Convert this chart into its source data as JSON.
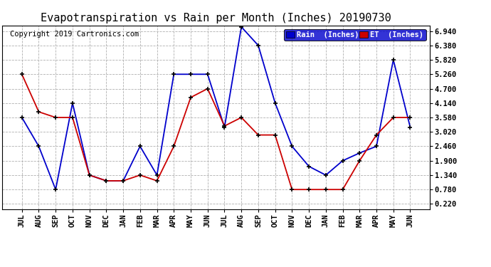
{
  "title": "Evapotranspiration vs Rain per Month (Inches) 20190730",
  "copyright": "Copyright 2019 Cartronics.com",
  "months": [
    "JUL",
    "AUG",
    "SEP",
    "OCT",
    "NOV",
    "DEC",
    "JAN",
    "FEB",
    "MAR",
    "APR",
    "MAY",
    "JUN",
    "JUL",
    "AUG",
    "SEP",
    "OCT",
    "NOV",
    "DEC",
    "JAN",
    "FEB",
    "MAR",
    "APR",
    "MAY",
    "JUN"
  ],
  "rain_values": [
    3.58,
    2.46,
    0.78,
    4.14,
    1.34,
    1.12,
    1.12,
    2.46,
    1.34,
    5.26,
    5.26,
    5.26,
    3.2,
    7.1,
    6.38,
    4.14,
    2.46,
    1.68,
    1.34,
    1.9,
    2.2,
    2.46,
    5.82,
    3.2
  ],
  "et_values": [
    5.26,
    3.8,
    3.58,
    3.58,
    1.34,
    1.12,
    1.12,
    1.34,
    1.12,
    2.46,
    4.36,
    4.7,
    3.25,
    3.58,
    2.9,
    2.9,
    0.78,
    0.78,
    0.78,
    0.78,
    1.9,
    2.9,
    3.58,
    3.58
  ],
  "rain_color": "#0000cc",
  "et_color": "#cc0000",
  "yticks": [
    0.22,
    0.78,
    1.34,
    1.9,
    2.46,
    3.02,
    3.58,
    4.14,
    4.7,
    5.26,
    5.82,
    6.38,
    6.94
  ],
  "ymin": 0.0,
  "ymax": 7.16,
  "background_color": "#ffffff",
  "grid_color": "#b0b0b0",
  "title_fontsize": 11,
  "copyright_fontsize": 7.5,
  "legend_rain_label": "Rain  (Inches)",
  "legend_et_label": "ET  (Inches)"
}
